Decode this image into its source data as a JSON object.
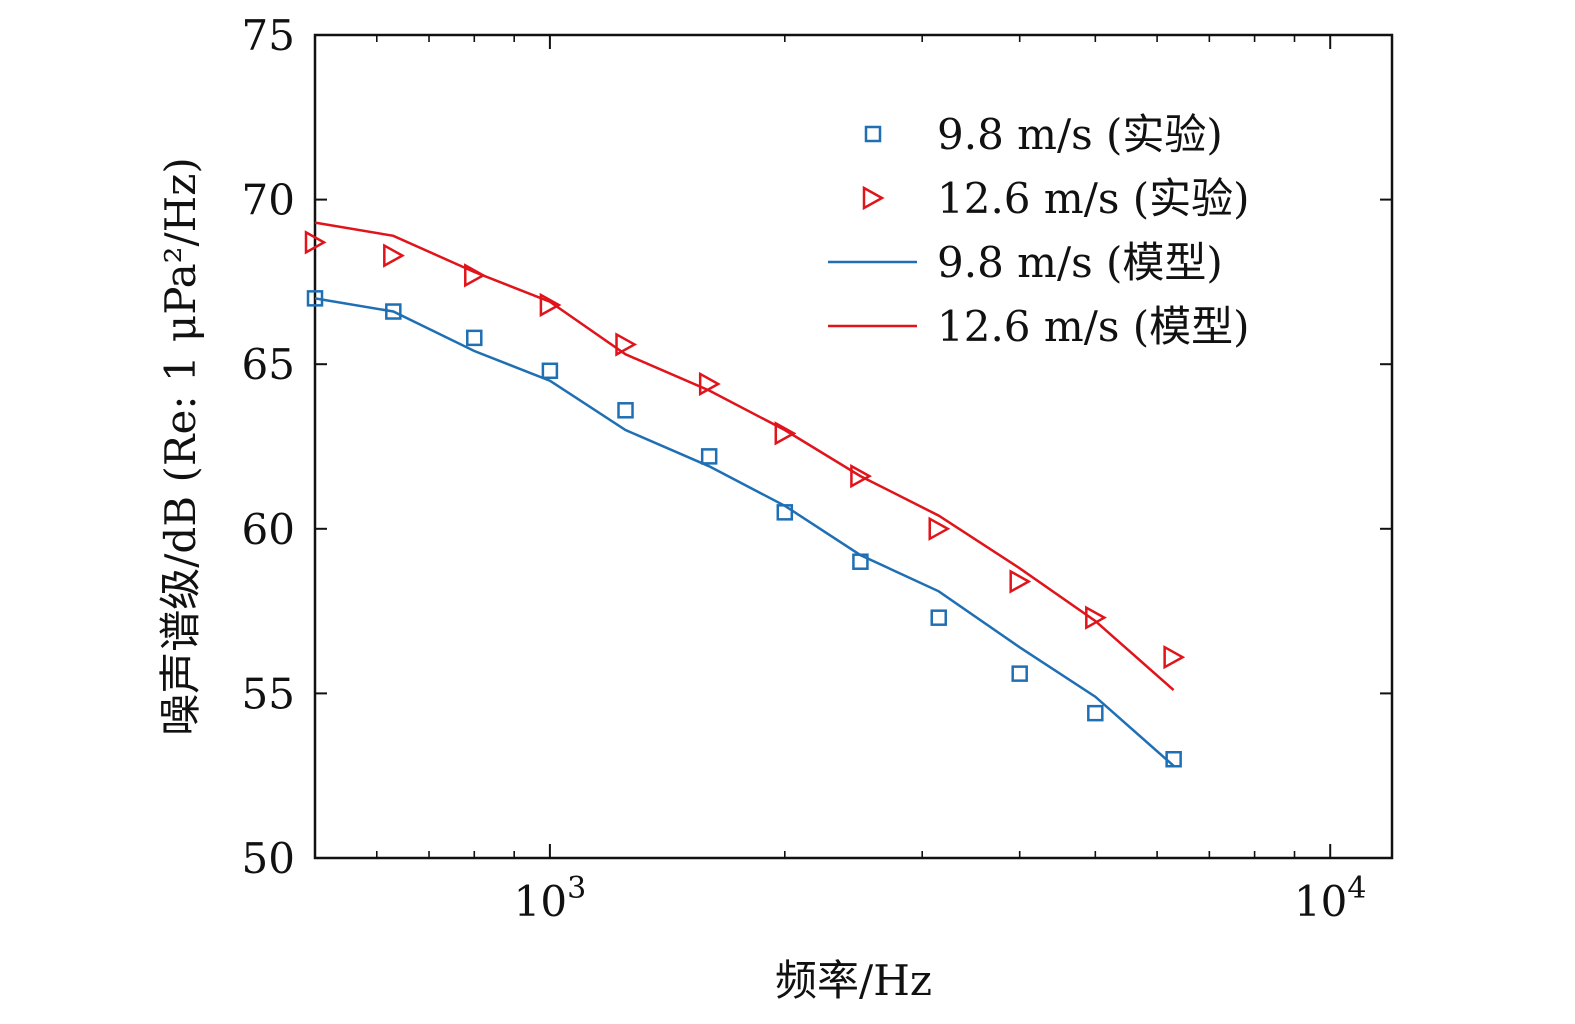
{
  "chart_data": {
    "type": "line",
    "xlabel": "频率/Hz",
    "ylabel": "噪声谱级/dB (Re: 1 μPa²/Hz)",
    "xscale": "log",
    "xlim": [
      500,
      12000
    ],
    "ylim": [
      50,
      75
    ],
    "grid": false,
    "legend_position": "top-right",
    "y_ticks": [
      50,
      55,
      60,
      65,
      70,
      75
    ],
    "x_major_ticks": [
      {
        "value": 1000,
        "base": "10",
        "exp": "3"
      },
      {
        "value": 10000,
        "base": "10",
        "exp": "4"
      }
    ],
    "x_minor_ticks": [
      600,
      700,
      800,
      900,
      2000,
      3000,
      4000,
      5000,
      6000,
      7000,
      8000,
      9000
    ],
    "colors": {
      "blue": "#1f6fb4",
      "red": "#e0141a"
    },
    "series": [
      {
        "name": "9.8 m/s (实验)",
        "kind": "marker",
        "marker": "square",
        "color": "#1f6fb4",
        "x": [
          500,
          630,
          800,
          1000,
          1250,
          1600,
          2000,
          2500,
          3150,
          4000,
          5000,
          6300
        ],
        "y": [
          67.0,
          66.6,
          65.8,
          64.8,
          63.6,
          62.2,
          60.5,
          59.0,
          57.3,
          55.6,
          54.4,
          53.0
        ]
      },
      {
        "name": "12.6 m/s (实验)",
        "kind": "marker",
        "marker": "triangle-right",
        "color": "#e0141a",
        "x": [
          500,
          630,
          800,
          1000,
          1250,
          1600,
          2000,
          2500,
          3150,
          4000,
          5000,
          6300
        ],
        "y": [
          68.7,
          68.3,
          67.7,
          66.8,
          65.6,
          64.4,
          62.9,
          61.6,
          60.0,
          58.4,
          57.3,
          56.1
        ]
      },
      {
        "name": "9.8 m/s (模型)",
        "kind": "line",
        "color": "#1f6fb4",
        "x": [
          500,
          630,
          800,
          1000,
          1250,
          1600,
          2000,
          2500,
          3150,
          4000,
          5000,
          6300
        ],
        "y": [
          67.0,
          66.6,
          65.4,
          64.5,
          63.0,
          61.9,
          60.7,
          59.2,
          58.1,
          56.4,
          54.9,
          52.8
        ]
      },
      {
        "name": "12.6 m/s (模型)",
        "kind": "line",
        "color": "#e0141a",
        "x": [
          500,
          630,
          800,
          1000,
          1250,
          1600,
          2000,
          2500,
          3150,
          4000,
          5000,
          6300
        ],
        "y": [
          69.3,
          68.9,
          67.8,
          66.9,
          65.3,
          64.2,
          63.0,
          61.6,
          60.4,
          58.8,
          57.2,
          55.1
        ]
      }
    ]
  }
}
